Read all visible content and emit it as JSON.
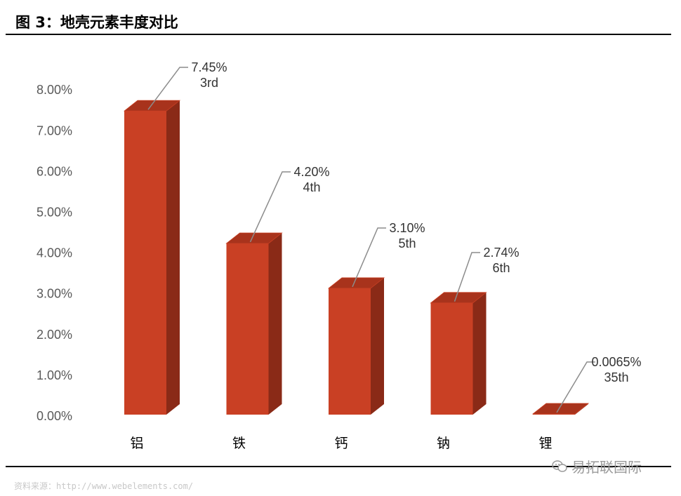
{
  "figure_title": "图 3：地壳元素丰度对比",
  "source_note": "资料来源：http://www.webelements.com/",
  "watermark": "易拓联国际",
  "watermark_icon": "wechat-icon",
  "colors": {
    "bar_front": "#c94024",
    "bar_side": "#8a2a17",
    "bar_top": "#a8331c",
    "axis_text": "#595959",
    "leader": "#8c8c8c"
  },
  "chart_data": {
    "type": "bar",
    "style": "3d-column",
    "categories": [
      "铝",
      "铁",
      "钙",
      "钠",
      "锂"
    ],
    "values": [
      7.45,
      4.2,
      3.1,
      2.74,
      0.0065
    ],
    "unit": "%",
    "data_labels": [
      {
        "value": "7.45%",
        "rank": "3rd"
      },
      {
        "value": "4.20%",
        "rank": "4th"
      },
      {
        "value": "3.10%",
        "rank": "5th"
      },
      {
        "value": "2.74%",
        "rank": "6th"
      },
      {
        "value": "0.0065%",
        "rank": "35th"
      }
    ],
    "y_ticks": [
      "0.00%",
      "1.00%",
      "2.00%",
      "3.00%",
      "4.00%",
      "5.00%",
      "6.00%",
      "7.00%",
      "8.00%"
    ],
    "ylim": [
      0,
      8
    ],
    "grid": false,
    "legend": "none",
    "title": "",
    "xlabel": "",
    "ylabel": ""
  }
}
